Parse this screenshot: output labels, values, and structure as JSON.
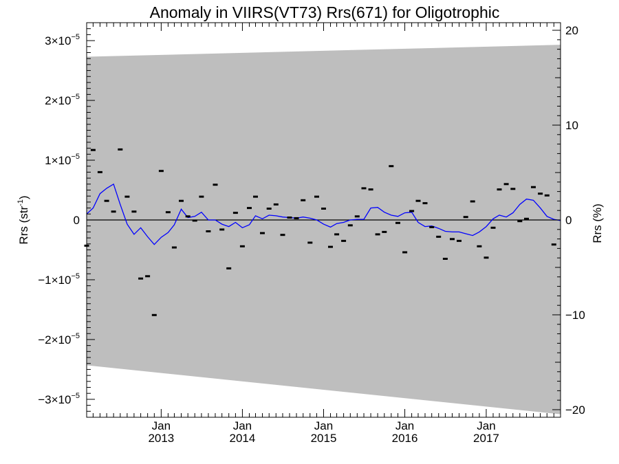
{
  "chart_data": {
    "type": "scatter",
    "title": "Anomaly in VIIRS(VT73) Rrs(671) for Oligotrophic",
    "ylabel_left": {
      "base": "Rrs (str",
      "sup": "-1",
      "close": ")"
    },
    "ylabel_right": "Rrs (%)",
    "x_range": [
      "2012-02-01",
      "2017-12-01"
    ],
    "y_left_range": [
      -3.3e-05,
      3.3e-05
    ],
    "y_right_range": [
      -20.8,
      20.8
    ],
    "x_ticks": [
      {
        "date": "2013-01-01",
        "month": "Jan",
        "year": "2013"
      },
      {
        "date": "2014-01-01",
        "month": "Jan",
        "year": "2014"
      },
      {
        "date": "2015-01-01",
        "month": "Jan",
        "year": "2015"
      },
      {
        "date": "2016-01-01",
        "month": "Jan",
        "year": "2016"
      },
      {
        "date": "2017-01-01",
        "month": "Jan",
        "year": "2017"
      }
    ],
    "y_left_ticks": [
      {
        "value": 3e-05,
        "mant": "3",
        "exp": "−5",
        "neg": false
      },
      {
        "value": 2e-05,
        "mant": "2",
        "exp": "−5",
        "neg": false
      },
      {
        "value": 1e-05,
        "mant": "1",
        "exp": "−5",
        "neg": false
      },
      {
        "value": 0,
        "mant": "0",
        "exp": "",
        "neg": false
      },
      {
        "value": -1e-05,
        "mant": "−1",
        "exp": "−5",
        "neg": true
      },
      {
        "value": -2e-05,
        "mant": "−2",
        "exp": "−5",
        "neg": true
      },
      {
        "value": -3e-05,
        "mant": "−3",
        "exp": "−5",
        "neg": true
      }
    ],
    "y_right_ticks": [
      {
        "value": 20,
        "label": "20"
      },
      {
        "value": 10,
        "label": "10"
      },
      {
        "value": 0,
        "label": "0"
      },
      {
        "value": -10,
        "label": "−10"
      },
      {
        "value": -20,
        "label": "−20"
      }
    ],
    "band": {
      "color": "#bebebe",
      "upper": [
        {
          "date": "2012-02-01",
          "value": 2.73e-05
        },
        {
          "date": "2017-12-01",
          "value": 2.93e-05
        }
      ],
      "lower": [
        {
          "date": "2012-02-01",
          "value": -2.43e-05
        },
        {
          "date": "2017-12-01",
          "value": -3.25e-05
        }
      ]
    },
    "points": [
      {
        "date": "2012-02-01",
        "value": -4.3e-06
      },
      {
        "date": "2012-03-01",
        "value": 1.17e-05
      },
      {
        "date": "2012-04-01",
        "value": 8e-06
      },
      {
        "date": "2012-05-01",
        "value": 3.2e-06
      },
      {
        "date": "2012-06-01",
        "value": 1.4e-06
      },
      {
        "date": "2012-07-01",
        "value": 1.18e-05
      },
      {
        "date": "2012-08-01",
        "value": 3.9e-06
      },
      {
        "date": "2012-09-01",
        "value": 1.4e-06
      },
      {
        "date": "2012-10-01",
        "value": -9.8e-06
      },
      {
        "date": "2012-11-01",
        "value": -9.4e-06
      },
      {
        "date": "2012-12-01",
        "value": -1.59e-05
      },
      {
        "date": "2013-01-01",
        "value": 8.2e-06
      },
      {
        "date": "2013-02-01",
        "value": 1.3e-06
      },
      {
        "date": "2013-03-01",
        "value": -4.6e-06
      },
      {
        "date": "2013-04-01",
        "value": 3.2e-06
      },
      {
        "date": "2013-05-01",
        "value": 6e-07
      },
      {
        "date": "2013-06-01",
        "value": -1e-07
      },
      {
        "date": "2013-07-01",
        "value": 3.9e-06
      },
      {
        "date": "2013-08-01",
        "value": -1.9e-06
      },
      {
        "date": "2013-09-01",
        "value": 5.9e-06
      },
      {
        "date": "2013-10-01",
        "value": -1.6e-06
      },
      {
        "date": "2013-11-01",
        "value": -8.1e-06
      },
      {
        "date": "2013-12-01",
        "value": 1.2e-06
      },
      {
        "date": "2014-01-01",
        "value": -4.4e-06
      },
      {
        "date": "2014-02-01",
        "value": 2e-06
      },
      {
        "date": "2014-03-01",
        "value": 3.9e-06
      },
      {
        "date": "2014-04-01",
        "value": -2.2e-06
      },
      {
        "date": "2014-05-01",
        "value": 1.9e-06
      },
      {
        "date": "2014-06-01",
        "value": 2.6e-06
      },
      {
        "date": "2014-07-01",
        "value": -2.5e-06
      },
      {
        "date": "2014-08-01",
        "value": 4e-07
      },
      {
        "date": "2014-09-01",
        "value": 3e-07
      },
      {
        "date": "2014-10-01",
        "value": 3.3e-06
      },
      {
        "date": "2014-11-01",
        "value": -3.8e-06
      },
      {
        "date": "2014-12-01",
        "value": 3.9e-06
      },
      {
        "date": "2015-01-01",
        "value": 1.9e-06
      },
      {
        "date": "2015-02-01",
        "value": -4.5e-06
      },
      {
        "date": "2015-03-01",
        "value": -2.4e-06
      },
      {
        "date": "2015-04-01",
        "value": -3.5e-06
      },
      {
        "date": "2015-05-01",
        "value": -9e-07
      },
      {
        "date": "2015-06-01",
        "value": 6e-07
      },
      {
        "date": "2015-07-01",
        "value": 5.3e-06
      },
      {
        "date": "2015-08-01",
        "value": 5.1e-06
      },
      {
        "date": "2015-09-01",
        "value": -2.4e-06
      },
      {
        "date": "2015-10-01",
        "value": -2e-06
      },
      {
        "date": "2015-11-01",
        "value": 9e-06
      },
      {
        "date": "2015-12-01",
        "value": -5e-07
      },
      {
        "date": "2016-01-01",
        "value": -5.4e-06
      },
      {
        "date": "2016-02-01",
        "value": 1.5e-06
      },
      {
        "date": "2016-03-01",
        "value": 3.2e-06
      },
      {
        "date": "2016-04-01",
        "value": 2.8e-06
      },
      {
        "date": "2016-05-01",
        "value": -1.2e-06
      },
      {
        "date": "2016-06-01",
        "value": -2.8e-06
      },
      {
        "date": "2016-07-01",
        "value": -6.5e-06
      },
      {
        "date": "2016-08-01",
        "value": -3.2e-06
      },
      {
        "date": "2016-09-01",
        "value": -3.5e-06
      },
      {
        "date": "2016-10-01",
        "value": 5e-07
      },
      {
        "date": "2016-11-01",
        "value": 3.1e-06
      },
      {
        "date": "2016-12-01",
        "value": -4.4e-06
      },
      {
        "date": "2017-01-01",
        "value": -6.3e-06
      },
      {
        "date": "2017-02-01",
        "value": -1.3e-06
      },
      {
        "date": "2017-03-01",
        "value": 5.1e-06
      },
      {
        "date": "2017-04-01",
        "value": 6e-06
      },
      {
        "date": "2017-05-01",
        "value": 5.2e-06
      },
      {
        "date": "2017-06-01",
        "value": -2e-07
      },
      {
        "date": "2017-07-01",
        "value": 2e-07
      },
      {
        "date": "2017-08-01",
        "value": 5.5e-06
      },
      {
        "date": "2017-09-01",
        "value": 4.4e-06
      },
      {
        "date": "2017-10-01",
        "value": 4.1e-06
      },
      {
        "date": "2017-11-01",
        "value": -4.1e-06
      }
    ],
    "smooth_line": {
      "color": "#0000ff",
      "values": [
        {
          "date": "2012-02-01",
          "value": 1e-06
        },
        {
          "date": "2012-03-01",
          "value": 2e-06
        },
        {
          "date": "2012-04-01",
          "value": 4.4e-06
        },
        {
          "date": "2012-05-01",
          "value": 5.3e-06
        },
        {
          "date": "2012-06-01",
          "value": 6e-06
        },
        {
          "date": "2012-07-01",
          "value": 2.6e-06
        },
        {
          "date": "2012-08-01",
          "value": -7e-07
        },
        {
          "date": "2012-09-01",
          "value": -2.4e-06
        },
        {
          "date": "2012-10-01",
          "value": -1.3e-06
        },
        {
          "date": "2012-11-01",
          "value": -2.8e-06
        },
        {
          "date": "2012-12-01",
          "value": -4.1e-06
        },
        {
          "date": "2013-01-01",
          "value": -2.9e-06
        },
        {
          "date": "2013-02-01",
          "value": -2.1e-06
        },
        {
          "date": "2013-03-01",
          "value": -8e-07
        },
        {
          "date": "2013-04-01",
          "value": 1.8e-06
        },
        {
          "date": "2013-05-01",
          "value": 4e-07
        },
        {
          "date": "2013-06-01",
          "value": 6e-07
        },
        {
          "date": "2013-07-01",
          "value": 1.3e-06
        },
        {
          "date": "2013-08-01",
          "value": 0
        },
        {
          "date": "2013-09-01",
          "value": 0
        },
        {
          "date": "2013-10-01",
          "value": -7e-07
        },
        {
          "date": "2013-11-01",
          "value": -1.1e-06
        },
        {
          "date": "2013-12-01",
          "value": -4e-07
        },
        {
          "date": "2014-01-01",
          "value": -1.3e-06
        },
        {
          "date": "2014-02-01",
          "value": -8e-07
        },
        {
          "date": "2014-03-01",
          "value": 7e-07
        },
        {
          "date": "2014-04-01",
          "value": 2e-07
        },
        {
          "date": "2014-05-01",
          "value": 8e-07
        },
        {
          "date": "2014-06-01",
          "value": 7e-07
        },
        {
          "date": "2014-07-01",
          "value": 5e-07
        },
        {
          "date": "2014-08-01",
          "value": 4e-07
        },
        {
          "date": "2014-09-01",
          "value": 3e-07
        },
        {
          "date": "2014-10-01",
          "value": 5e-07
        },
        {
          "date": "2014-11-01",
          "value": 3e-07
        },
        {
          "date": "2014-12-01",
          "value": 0
        },
        {
          "date": "2015-01-01",
          "value": -7e-07
        },
        {
          "date": "2015-02-01",
          "value": -1.2e-06
        },
        {
          "date": "2015-03-01",
          "value": -6e-07
        },
        {
          "date": "2015-04-01",
          "value": -4e-07
        },
        {
          "date": "2015-05-01",
          "value": 0
        },
        {
          "date": "2015-06-01",
          "value": 1e-07
        },
        {
          "date": "2015-07-01",
          "value": 1e-07
        },
        {
          "date": "2015-08-01",
          "value": 2e-06
        },
        {
          "date": "2015-09-01",
          "value": 2.1e-06
        },
        {
          "date": "2015-10-01",
          "value": 1.3e-06
        },
        {
          "date": "2015-11-01",
          "value": 8e-07
        },
        {
          "date": "2015-12-01",
          "value": 6e-07
        },
        {
          "date": "2016-01-01",
          "value": 1.2e-06
        },
        {
          "date": "2016-02-01",
          "value": 1.3e-06
        },
        {
          "date": "2016-03-01",
          "value": -4e-07
        },
        {
          "date": "2016-04-01",
          "value": -1.1e-06
        },
        {
          "date": "2016-05-01",
          "value": -1e-06
        },
        {
          "date": "2016-06-01",
          "value": -1.4e-06
        },
        {
          "date": "2016-07-01",
          "value": -1.9e-06
        },
        {
          "date": "2016-08-01",
          "value": -2e-06
        },
        {
          "date": "2016-09-01",
          "value": -2e-06
        },
        {
          "date": "2016-10-01",
          "value": -2.3e-06
        },
        {
          "date": "2016-11-01",
          "value": -2.6e-06
        },
        {
          "date": "2016-12-01",
          "value": -2e-06
        },
        {
          "date": "2017-01-01",
          "value": -1.1e-06
        },
        {
          "date": "2017-02-01",
          "value": 2e-07
        },
        {
          "date": "2017-03-01",
          "value": 8e-07
        },
        {
          "date": "2017-04-01",
          "value": 5e-07
        },
        {
          "date": "2017-05-01",
          "value": 1.2e-06
        },
        {
          "date": "2017-06-01",
          "value": 2.6e-06
        },
        {
          "date": "2017-07-01",
          "value": 3.5e-06
        },
        {
          "date": "2017-08-01",
          "value": 3.3e-06
        },
        {
          "date": "2017-09-01",
          "value": 2e-06
        },
        {
          "date": "2017-10-01",
          "value": 6e-07
        },
        {
          "date": "2017-11-01",
          "value": 1e-07
        },
        {
          "date": "2017-12-01",
          "value": -1e-07
        }
      ]
    },
    "zero_line": 0,
    "grid": false,
    "legend": "none"
  }
}
